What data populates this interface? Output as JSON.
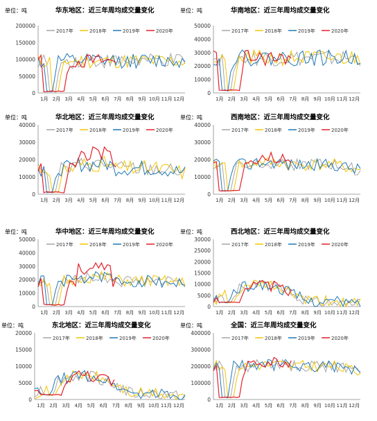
{
  "legend_labels": [
    "2017年",
    "2018年",
    "2019年",
    "2020年"
  ],
  "series_colors": [
    "#a6a6a6",
    "#f2c400",
    "#1f77b4",
    "#e3202a"
  ],
  "month_labels": [
    "1月",
    "2月",
    "3月",
    "4月",
    "5月",
    "6月",
    "7月",
    "8月",
    "9月",
    "10月",
    "11月",
    "12月"
  ],
  "chart_data": [
    {
      "type": "line",
      "title": "华东地区：近三年周均成交量变化",
      "unit_label": "单位：吨",
      "ylim": [
        0,
        200000
      ],
      "yticks": [
        "0",
        "50000",
        "100000",
        "150000",
        "200000"
      ],
      "base": 95000,
      "amp": 22000,
      "lowly": 0.03,
      "peak": 0,
      "grow": 0,
      "drop": 0,
      "seed": 1,
      "x": [
        "1月",
        "2月",
        "3月",
        "4月",
        "5月",
        "6月",
        "7月",
        "8月",
        "9月",
        "10月",
        "11月",
        "12月"
      ]
    },
    {
      "type": "line",
      "title": "华南地区：近三年周均成交量变化",
      "unit_label": "单位：吨",
      "ylim": [
        0,
        50000
      ],
      "yticks": [
        "0",
        "10000",
        "20000",
        "30000",
        "40000",
        "50000"
      ],
      "base": 26000,
      "amp": 6000,
      "lowly": 0.05,
      "peak": 0,
      "grow": 0,
      "drop": 0,
      "seed": 2
    },
    {
      "type": "line",
      "title": "华北地区：近三年周均成交量变化",
      "unit_label": "单位：吨",
      "ylim": [
        0,
        40000
      ],
      "yticks": [
        "0",
        "10000",
        "20000",
        "30000",
        "40000"
      ],
      "base": 15000,
      "amp": 4500,
      "lowly": 0.05,
      "peak": 8000,
      "grow": 0,
      "drop": 0.2,
      "seed": 3
    },
    {
      "type": "line",
      "title": "西南地区：近三年周均成交量变化",
      "unit_label": "单位：吨",
      "ylim": [
        0,
        40000
      ],
      "yticks": [
        "0",
        "10000",
        "20000",
        "30000",
        "40000"
      ],
      "base": 17000,
      "amp": 3500,
      "lowly": 0.1,
      "peak": 4000,
      "grow": 0,
      "drop": 0.2,
      "seed": 4
    },
    {
      "type": "line",
      "title": "华中地区：近三年周均成交量变化",
      "unit_label": "单位：吨",
      "ylim": [
        0,
        50000
      ],
      "yticks": [
        "0",
        "10000",
        "20000",
        "30000",
        "40000",
        "50000"
      ],
      "base": 19000,
      "amp": 4500,
      "lowly": 0.05,
      "peak": 9000,
      "grow": 0,
      "drop": 0.1,
      "seed": 5
    },
    {
      "type": "line",
      "title": "西北地区：近三年周均成交量变化",
      "unit_label": "单位：吨",
      "ylim": [
        0,
        30000
      ],
      "yticks": [
        "0",
        "5000",
        "10000",
        "15000",
        "20000",
        "25000",
        "30000"
      ],
      "base": 8000,
      "amp": 2500,
      "lowly": 0.2,
      "peak": 0,
      "grow": 0.9,
      "drop": 0.6,
      "seed": 6
    },
    {
      "type": "line",
      "title": "东北地区：近三年周均成交量变化",
      "unit_label": "单位：吨",
      "ylim": [
        0,
        20000
      ],
      "yticks": [
        "0",
        "5000",
        "10000",
        "15000",
        "20000"
      ],
      "base": 6000,
      "amp": 1800,
      "lowly": 0.2,
      "peak": 0,
      "grow": 0.9,
      "drop": 0.8,
      "seed": 7
    },
    {
      "type": "line",
      "title": "全国：近三年周均成交量变化",
      "unit_label": "单位：吨",
      "ylim": [
        0,
        400000
      ],
      "yticks": [
        "0",
        "100000",
        "200000",
        "300000",
        "400000"
      ],
      "base": 200000,
      "amp": 35000,
      "lowly": 0.05,
      "peak": 30000,
      "grow": 0,
      "drop": 0.2,
      "seed": 8
    }
  ]
}
